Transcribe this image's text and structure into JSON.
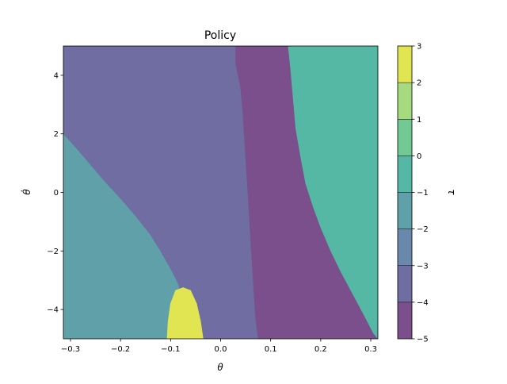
{
  "chart_data": {
    "type": "heatmap",
    "subtype": "filled-contour",
    "title": "Policy",
    "xlabel": "θ",
    "ylabel": "θ̇",
    "xlim": [
      -0.3142,
      0.3142
    ],
    "ylim": [
      -5,
      5
    ],
    "x_ticks": [
      -0.3,
      -0.2,
      -0.1,
      0.0,
      0.1,
      0.2,
      0.3
    ],
    "x_tick_labels": [
      "−0.3",
      "−0.2",
      "−0.1",
      "0.0",
      "0.1",
      "0.2",
      "0.3"
    ],
    "y_ticks": [
      -4,
      -2,
      0,
      2,
      4
    ],
    "y_tick_labels": [
      "−4",
      "−2",
      "0",
      "2",
      "4"
    ],
    "colorbar": {
      "label": "τ",
      "levels": [
        -5,
        -4,
        -3,
        -2,
        -1,
        0,
        1,
        2,
        3
      ],
      "tick_labels": [
        "−5",
        "−4",
        "−3",
        "−2",
        "−1",
        "0",
        "1",
        "2",
        "3"
      ],
      "colors": [
        "#7a4f8c",
        "#6f6da1",
        "#6a88ab",
        "#5fa0a9",
        "#55b8a5",
        "#72c994",
        "#a6da7f",
        "#e0e551"
      ]
    },
    "regions": [
      {
        "tau_range": [
          -2,
          -1
        ],
        "color": "#5fa0a9",
        "boundary": [
          [
            -0.3142,
            2.0
          ],
          [
            -0.29,
            1.55
          ],
          [
            -0.26,
            0.95
          ],
          [
            -0.23,
            0.35
          ],
          [
            -0.2,
            -0.2
          ],
          [
            -0.17,
            -0.8
          ],
          [
            -0.14,
            -1.45
          ],
          [
            -0.12,
            -2.0
          ],
          [
            -0.1,
            -2.6
          ],
          [
            -0.085,
            -3.1
          ],
          [
            -0.075,
            -3.65
          ],
          [
            -0.068,
            -4.2
          ],
          [
            -0.062,
            -4.7
          ],
          [
            -0.058,
            -5.0
          ],
          [
            -0.3142,
            -5.0
          ]
        ]
      },
      {
        "tau_range": [
          -4,
          -3
        ],
        "color": "#6f6da1",
        "boundary": [
          [
            -0.3142,
            5.0
          ],
          [
            0.03,
            5.0
          ],
          [
            0.03,
            4.4
          ],
          [
            0.04,
            3.6
          ],
          [
            0.045,
            2.6
          ],
          [
            0.05,
            1.2
          ],
          [
            0.055,
            -0.1
          ],
          [
            0.06,
            -1.6
          ],
          [
            0.065,
            -3.0
          ],
          [
            0.07,
            -4.3
          ],
          [
            0.075,
            -5.0
          ],
          [
            -0.058,
            -5.0
          ],
          [
            -0.062,
            -4.7
          ],
          [
            -0.068,
            -4.2
          ],
          [
            -0.075,
            -3.65
          ],
          [
            -0.085,
            -3.1
          ],
          [
            -0.1,
            -2.6
          ],
          [
            -0.12,
            -2.0
          ],
          [
            -0.14,
            -1.45
          ],
          [
            -0.17,
            -0.8
          ],
          [
            -0.2,
            -0.2
          ],
          [
            -0.23,
            0.35
          ],
          [
            -0.26,
            0.95
          ],
          [
            -0.29,
            1.55
          ],
          [
            -0.3142,
            2.0
          ]
        ]
      },
      {
        "tau_range": [
          -5,
          -4
        ],
        "color": "#7a4f8c",
        "boundary": [
          [
            0.03,
            5.0
          ],
          [
            0.135,
            5.0
          ],
          [
            0.14,
            4.2
          ],
          [
            0.145,
            3.2
          ],
          [
            0.15,
            2.2
          ],
          [
            0.16,
            1.2
          ],
          [
            0.17,
            0.3
          ],
          [
            0.185,
            -0.5
          ],
          [
            0.2,
            -1.2
          ],
          [
            0.22,
            -2.0
          ],
          [
            0.24,
            -2.7
          ],
          [
            0.265,
            -3.5
          ],
          [
            0.29,
            -4.3
          ],
          [
            0.305,
            -4.8
          ],
          [
            0.3142,
            -5.0
          ],
          [
            0.075,
            -5.0
          ],
          [
            0.07,
            -4.3
          ],
          [
            0.065,
            -3.0
          ],
          [
            0.06,
            -1.6
          ],
          [
            0.055,
            -0.1
          ],
          [
            0.05,
            1.2
          ],
          [
            0.045,
            2.6
          ],
          [
            0.04,
            3.6
          ],
          [
            0.03,
            4.4
          ]
        ]
      },
      {
        "tau_range": [
          -1,
          0
        ],
        "color": "#55b8a5",
        "boundary": [
          [
            0.135,
            5.0
          ],
          [
            0.3142,
            5.0
          ],
          [
            0.3142,
            -5.0
          ],
          [
            0.305,
            -4.8
          ],
          [
            0.29,
            -4.3
          ],
          [
            0.265,
            -3.5
          ],
          [
            0.24,
            -2.7
          ],
          [
            0.22,
            -2.0
          ],
          [
            0.2,
            -1.2
          ],
          [
            0.185,
            -0.5
          ],
          [
            0.17,
            0.3
          ],
          [
            0.16,
            1.2
          ],
          [
            0.15,
            2.2
          ],
          [
            0.145,
            3.2
          ],
          [
            0.14,
            4.2
          ]
        ]
      },
      {
        "tau_range": [
          2,
          3
        ],
        "color": "#e0e551",
        "boundary": [
          [
            -0.107,
            -5.0
          ],
          [
            -0.105,
            -4.4
          ],
          [
            -0.1,
            -3.8
          ],
          [
            -0.09,
            -3.35
          ],
          [
            -0.075,
            -3.25
          ],
          [
            -0.06,
            -3.35
          ],
          [
            -0.048,
            -3.8
          ],
          [
            -0.04,
            -4.4
          ],
          [
            -0.035,
            -5.0
          ]
        ]
      }
    ]
  }
}
